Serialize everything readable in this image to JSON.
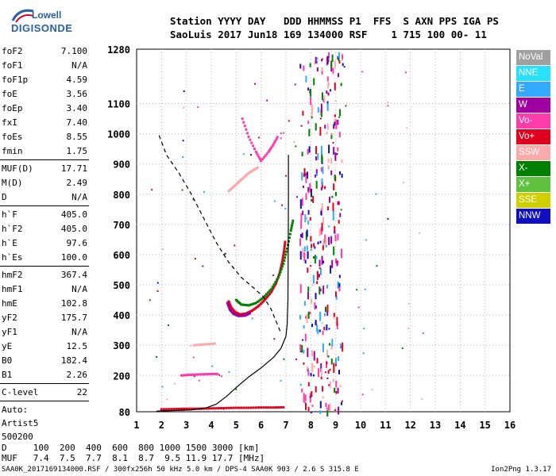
{
  "logo": {
    "line1": "Lowell",
    "line2": "DIGISONDE"
  },
  "header": {
    "labels": "Station YYYY DAY   DDD HHMMSS P1  FFS  S AXN PPS IGA PS",
    "values": "SaoLuis 2017 Jun18 169 134000 RSF    1 715 100 00- 11"
  },
  "params_group1": [
    {
      "k": "foF2",
      "v": "7.100"
    },
    {
      "k": "foF1",
      "v": "N/A"
    },
    {
      "k": "foF1p",
      "v": "4.59"
    },
    {
      "k": "foE",
      "v": "3.56"
    },
    {
      "k": "foEp",
      "v": "3.40"
    },
    {
      "k": "fxI",
      "v": "7.40"
    },
    {
      "k": "foEs",
      "v": "8.55"
    },
    {
      "k": "fmin",
      "v": "1.75"
    }
  ],
  "params_group2": [
    {
      "k": "MUF(D)",
      "v": "17.71"
    },
    {
      "k": "M(D)",
      "v": "2.49"
    },
    {
      "k": "D",
      "v": "N/A"
    }
  ],
  "params_group3": [
    {
      "k": "h`F",
      "v": "405.0"
    },
    {
      "k": "h`F2",
      "v": "405.0"
    },
    {
      "k": "h`E",
      "v": "97.6"
    },
    {
      "k": "h`Es",
      "v": "100.0"
    }
  ],
  "params_group4": [
    {
      "k": "hmF2",
      "v": "367.4"
    },
    {
      "k": "hmF1",
      "v": "N/A"
    },
    {
      "k": "hmE",
      "v": "102.8"
    },
    {
      "k": "yF2",
      "v": "175.7"
    },
    {
      "k": "yF1",
      "v": "N/A"
    },
    {
      "k": "yE",
      "v": "12.5"
    },
    {
      "k": "B0",
      "v": "182.4"
    },
    {
      "k": "B1",
      "v": "2.26"
    }
  ],
  "params_group5": [
    {
      "k": "C-level",
      "v": "22"
    }
  ],
  "auto": {
    "line1": "Auto:",
    "line2": "Artist5",
    "line3": "500200"
  },
  "legend": [
    {
      "label": "NoVal",
      "color": "#a0a0a0"
    },
    {
      "label": "NNE",
      "color": "#29e0ff"
    },
    {
      "label": "E",
      "color": "#33aaff"
    },
    {
      "label": "W",
      "color": "#a000a0"
    },
    {
      "label": "Vo-",
      "color": "#ff3caa"
    },
    {
      "label": "Vo+",
      "color": "#e0001e"
    },
    {
      "label": "SSW",
      "color": "#ffaaaa"
    },
    {
      "label": "X-",
      "color": "#008000"
    },
    {
      "label": "X+",
      "color": "#60c040"
    },
    {
      "label": "SSE",
      "color": "#d0d000"
    },
    {
      "label": "NNW",
      "color": "#1010c0"
    }
  ],
  "bottom": {
    "d_row": "D     100  200  400  600  800 1000 1500 3000 [km]",
    "muf_row": "MUF   7.4  7.5  7.7  8.1  8.7  9.5 11.9 17.7 [MHz]"
  },
  "footer": "SAA0K_2017169134000.RSF / 300fx256h 50 kHz 5.0 km / DPS-4 SAA0K 903 / 2.6 S 315.8 E",
  "footer_right": "Ion2Png 1.3.17",
  "chart_data": {
    "type": "scatter",
    "xlim": [
      1,
      16
    ],
    "ylim": [
      80,
      1280
    ],
    "x_ticks": [
      1,
      2,
      3,
      4,
      5,
      6,
      7,
      8,
      9,
      10,
      11,
      12,
      13,
      14,
      15,
      16
    ],
    "y_ticks": [
      80,
      200,
      300,
      400,
      500,
      600,
      700,
      800,
      900,
      1000,
      1100,
      1280
    ],
    "profile_line": [
      [
        1.8,
        82
      ],
      [
        2.5,
        84
      ],
      [
        3.2,
        86
      ],
      [
        3.8,
        93
      ],
      [
        4.2,
        105
      ],
      [
        4.6,
        130
      ],
      [
        5.0,
        160
      ],
      [
        5.5,
        195
      ],
      [
        6.0,
        225
      ],
      [
        6.5,
        260
      ],
      [
        6.8,
        290
      ],
      [
        7.0,
        330
      ],
      [
        7.05,
        370
      ],
      [
        7.08,
        450
      ],
      [
        7.09,
        600
      ],
      [
        7.1,
        780
      ],
      [
        7.1,
        930
      ]
    ],
    "dashed_line": [
      [
        1.9,
        995
      ],
      [
        2.2,
        930
      ],
      [
        2.7,
        870
      ],
      [
        3.2,
        800
      ],
      [
        3.7,
        720
      ],
      [
        4.2,
        640
      ],
      [
        4.7,
        575
      ],
      [
        5.2,
        525
      ],
      [
        5.7,
        490
      ],
      [
        6.1,
        460
      ],
      [
        6.4,
        420
      ],
      [
        6.6,
        380
      ],
      [
        6.8,
        340
      ]
    ],
    "traces": [
      {
        "name": "Vo+",
        "color": "#e0001e",
        "points": [
          [
            4.7,
            445
          ],
          [
            4.8,
            425
          ],
          [
            4.95,
            410
          ],
          [
            5.15,
            402
          ],
          [
            5.4,
            405
          ],
          [
            5.65,
            415
          ],
          [
            5.9,
            430
          ],
          [
            6.15,
            450
          ],
          [
            6.4,
            475
          ],
          [
            6.6,
            505
          ],
          [
            6.75,
            540
          ],
          [
            6.85,
            575
          ],
          [
            6.92,
            610
          ],
          [
            6.98,
            650
          ]
        ]
      },
      {
        "name": "W",
        "color": "#a000a0",
        "points": [
          [
            4.65,
            440
          ],
          [
            4.75,
            418
          ],
          [
            4.9,
            404
          ],
          [
            5.1,
            397
          ],
          [
            5.35,
            398
          ],
          [
            5.6,
            408
          ]
        ]
      },
      {
        "name": "X-",
        "color": "#008000",
        "points": [
          [
            5.0,
            450
          ],
          [
            5.2,
            435
          ],
          [
            5.5,
            432
          ],
          [
            5.8,
            440
          ],
          [
            6.1,
            458
          ],
          [
            6.4,
            485
          ],
          [
            6.7,
            525
          ],
          [
            6.9,
            570
          ],
          [
            7.05,
            620
          ],
          [
            7.2,
            680
          ],
          [
            7.3,
            720
          ]
        ]
      },
      {
        "name": "Vo-",
        "color": "#ff3caa",
        "points": [
          [
            5.25,
            1050
          ],
          [
            5.5,
            990
          ],
          [
            5.8,
            940
          ],
          [
            6.0,
            910
          ],
          [
            6.3,
            940
          ],
          [
            6.5,
            965
          ],
          [
            6.7,
            995
          ]
        ]
      },
      {
        "name": "SSW",
        "color": "#ffaaaa",
        "points": [
          [
            4.7,
            810
          ],
          [
            4.9,
            825
          ],
          [
            5.1,
            840
          ],
          [
            5.3,
            855
          ],
          [
            5.5,
            870
          ],
          [
            5.7,
            880
          ],
          [
            5.9,
            890
          ]
        ]
      },
      {
        "name": "Vo+",
        "color": "#e0001e",
        "points": [
          [
            2.0,
            88
          ],
          [
            2.5,
            89
          ],
          [
            3.0,
            90
          ],
          [
            3.5,
            90
          ],
          [
            4.0,
            91
          ],
          [
            4.5,
            92
          ],
          [
            5.0,
            93
          ],
          [
            5.5,
            93
          ],
          [
            6.0,
            94
          ],
          [
            6.5,
            94
          ],
          [
            7.0,
            95
          ]
        ]
      },
      {
        "name": "Vo-",
        "color": "#ff3caa",
        "points": [
          [
            2.8,
            200
          ],
          [
            3.1,
            202
          ],
          [
            3.4,
            203
          ],
          [
            3.7,
            204
          ],
          [
            4.0,
            205
          ],
          [
            4.3,
            205
          ]
        ]
      },
      {
        "name": "SSW",
        "color": "#ffaaaa",
        "points": [
          [
            3.3,
            300
          ],
          [
            3.6,
            302
          ],
          [
            3.9,
            304
          ],
          [
            4.2,
            306
          ]
        ]
      }
    ],
    "noise_columns_x": [
      7.7,
      8.0,
      8.3,
      8.55,
      8.8,
      9.1
    ]
  }
}
